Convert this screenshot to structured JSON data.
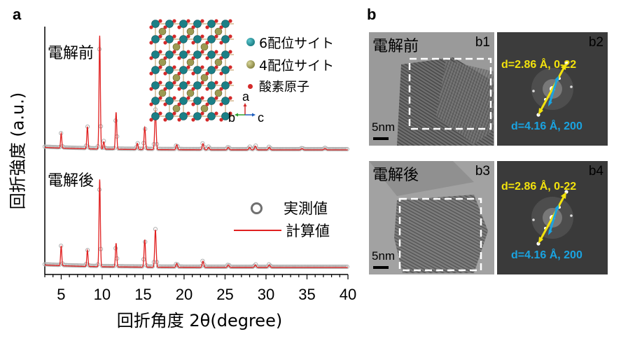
{
  "panels": {
    "a": "a",
    "b": "b"
  },
  "chart_data": {
    "type": "line",
    "xlabel": "回折角度 2θ(degree)",
    "ylabel": "回折強度 (a.u.)",
    "xlim": [
      3,
      40
    ],
    "xticks": [
      5,
      10,
      15,
      20,
      25,
      30,
      35,
      40
    ],
    "series": [
      {
        "name": "実測値",
        "style": "open circles",
        "color": "#808080"
      },
      {
        "name": "計算値",
        "style": "line",
        "color": "#e02020"
      }
    ],
    "traces": [
      {
        "label": "電解前",
        "peaks": [
          [
            5.0,
            0.12
          ],
          [
            8.2,
            0.18
          ],
          [
            9.7,
            0.92
          ],
          [
            10.2,
            0.06
          ],
          [
            11.7,
            0.3
          ],
          [
            14.3,
            0.05
          ],
          [
            15.2,
            0.18
          ],
          [
            16.5,
            0.32
          ],
          [
            19.1,
            0.04
          ],
          [
            22.3,
            0.05
          ],
          [
            23.0,
            0.02
          ],
          [
            25.4,
            0.02
          ],
          [
            28.0,
            0.02
          ],
          [
            28.7,
            0.03
          ],
          [
            30.4,
            0.02
          ],
          [
            34.4,
            0.01
          ],
          [
            37.2,
            0.01
          ]
        ]
      },
      {
        "label": "電解後",
        "peaks": [
          [
            5.0,
            0.16
          ],
          [
            8.2,
            0.13
          ],
          [
            9.7,
            0.7
          ],
          [
            11.7,
            0.19
          ],
          [
            15.2,
            0.22
          ],
          [
            16.5,
            0.3
          ],
          [
            19.1,
            0.03
          ],
          [
            22.3,
            0.05
          ],
          [
            25.4,
            0.02
          ],
          [
            28.7,
            0.02
          ],
          [
            30.4,
            0.02
          ]
        ]
      }
    ]
  },
  "structure_legend": {
    "items": [
      {
        "label": "6配位サイト",
        "color": "#1b7f86"
      },
      {
        "label": "4配位サイト",
        "color": "#9c9a52"
      },
      {
        "label": "酸素原子",
        "color": "#d42a2a"
      }
    ],
    "axes": {
      "a": "a",
      "b": "b",
      "c": "c"
    }
  },
  "tem": {
    "before": {
      "label": "電解前",
      "tag": "b1",
      "scale": "5nm"
    },
    "before_fft": {
      "tag": "b2",
      "line1": "d=2.86 Å, 0-22",
      "line2": "d=4.16 Å, 200"
    },
    "after": {
      "label": "電解後",
      "tag": "b3",
      "scale": "5nm"
    },
    "after_fft": {
      "tag": "b4",
      "line1": "d=2.86 Å, 0-22",
      "line2": "d=4.16 Å, 200"
    }
  },
  "colors": {
    "yellow": "#f2e20d",
    "cyan": "#1aa3e0"
  }
}
